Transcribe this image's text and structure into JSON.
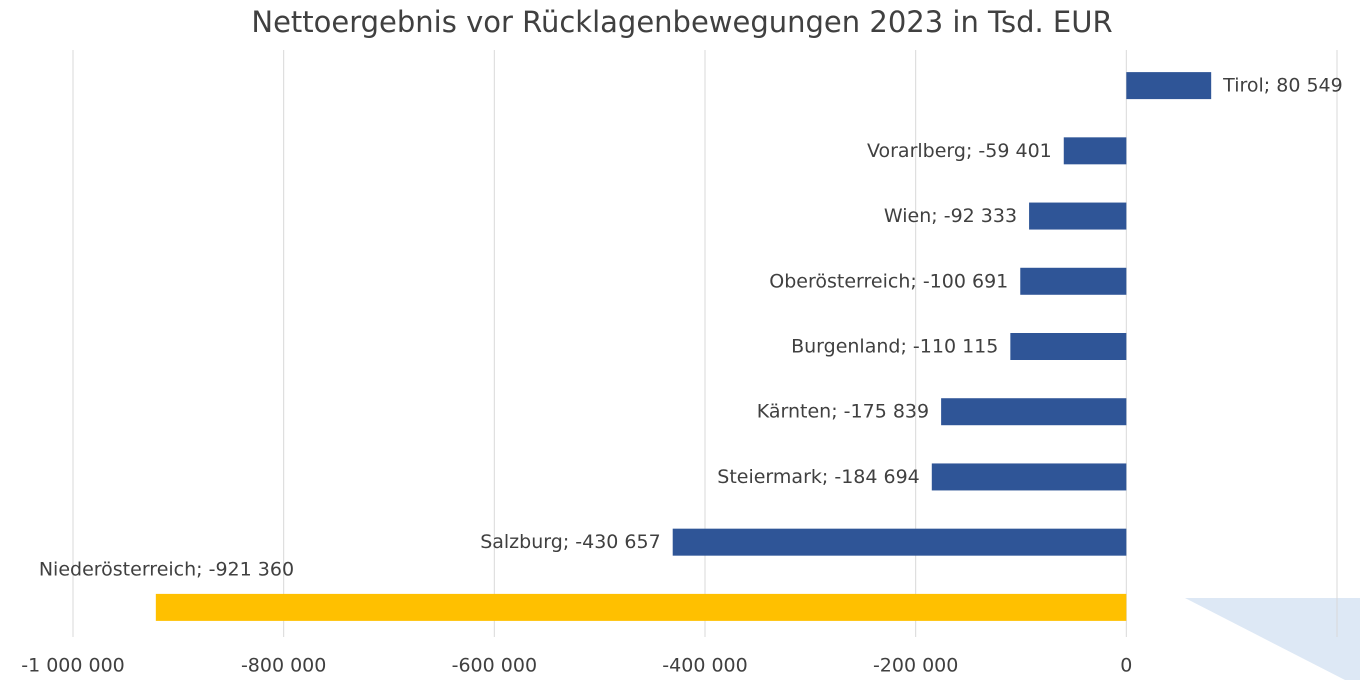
{
  "chart_data": {
    "type": "bar",
    "orientation": "horizontal",
    "title": "Nettoergebnis vor Rücklagenbewegungen 2023 in Tsd. EUR",
    "categories": [
      "Tirol",
      "Vorarlberg",
      "Wien",
      "Oberösterreich",
      "Burgenland",
      "Kärnten",
      "Steiermark",
      "Salzburg",
      "Niederösterreich"
    ],
    "values": [
      80549,
      -59401,
      -92333,
      -100691,
      -110115,
      -175839,
      -184694,
      -430657,
      -921360
    ],
    "value_labels": [
      "80 549",
      "-59 401",
      "-92 333",
      "-100 691",
      "-110 115",
      "-175 839",
      "-184 694",
      "-430 657",
      "-921 360"
    ],
    "label_separator": "; ",
    "colors": [
      "#2f5597",
      "#2f5597",
      "#2f5597",
      "#2f5597",
      "#2f5597",
      "#2f5597",
      "#2f5597",
      "#2f5597",
      "#ffc000"
    ],
    "xlim": [
      -1000000,
      200000
    ],
    "xticks": [
      {
        "value": -1000000,
        "label": "-1 000 000"
      },
      {
        "value": -800000,
        "label": "-800 000"
      },
      {
        "value": -600000,
        "label": "-600 000"
      },
      {
        "value": -400000,
        "label": "-400 000"
      },
      {
        "value": -200000,
        "label": "-200 000"
      },
      0
    ],
    "grid": true
  }
}
